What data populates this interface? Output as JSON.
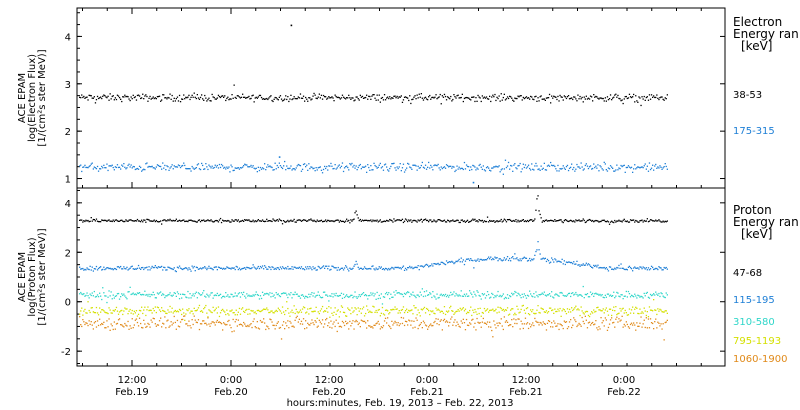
{
  "chart_data": [
    {
      "type": "scatter",
      "panel": "electron",
      "ylabel_lines": [
        "ACE EPAM",
        "log(Electron Flux)",
        "[1/(cm²s ster MeV)]"
      ],
      "legend_title_lines": [
        "Electron",
        "Energy ran",
        "[keV]"
      ],
      "ylim": [
        0.8,
        4.6
      ],
      "yticks": [
        1,
        2,
        3,
        4
      ],
      "series": [
        {
          "name": "38-53",
          "color": "#000000",
          "level": 2.72,
          "spread": 0.06,
          "outliers": [
            [
              0.36,
              4.25
            ]
          ]
        },
        {
          "name": "175-315",
          "color": "#1e7fd6",
          "level": 1.25,
          "spread": 0.07,
          "outliers": [
            [
              0.67,
              0.93
            ],
            [
              0.34,
              1.47
            ]
          ]
        }
      ]
    },
    {
      "type": "scatter",
      "panel": "proton",
      "ylabel_lines": [
        "ACE EPAM",
        "log(Proton Flux)",
        "[1/(cm²s ster MeV)]"
      ],
      "legend_title_lines": [
        "Proton",
        "Energy ran",
        "[keV]"
      ],
      "ylim": [
        -2.6,
        4.6
      ],
      "yticks": [
        -2,
        0,
        2,
        4
      ],
      "series": [
        {
          "name": "47-68",
          "color": "#000000",
          "level": 3.3,
          "spread": 0.05,
          "bumps": [
            [
              0.47,
              0.35
            ],
            [
              0.78,
              0.9
            ]
          ]
        },
        {
          "name": "115-195",
          "color": "#1e7fd6",
          "level": 1.38,
          "spread": 0.08,
          "bumps": [
            [
              0.47,
              0.3
            ],
            [
              0.78,
              0.8
            ]
          ],
          "hump": [
            0.56,
            0.9,
            0.4
          ]
        },
        {
          "name": "310-580",
          "color": "#2fd6c9",
          "level": 0.3,
          "spread": 0.12
        },
        {
          "name": "795-1193",
          "color": "#d4e000",
          "level": -0.35,
          "spread": 0.16
        },
        {
          "name": "1060-1900",
          "color": "#e08a1a",
          "level": -0.85,
          "spread": 0.22
        }
      ]
    }
  ],
  "x_axis": {
    "label": "hours:minutes, Feb. 19, 2013 – Feb. 22, 2013",
    "ticks": [
      {
        "time": "12:00",
        "date": "Feb.19"
      },
      {
        "time": "0:00",
        "date": "Feb.20"
      },
      {
        "time": "12:00",
        "date": "Feb.20"
      },
      {
        "time": "0:00",
        "date": "Feb.21"
      },
      {
        "time": "12:00",
        "date": "Feb.21"
      },
      {
        "time": "0:00",
        "date": "Feb.22"
      }
    ],
    "data_end_fraction": 0.91
  }
}
